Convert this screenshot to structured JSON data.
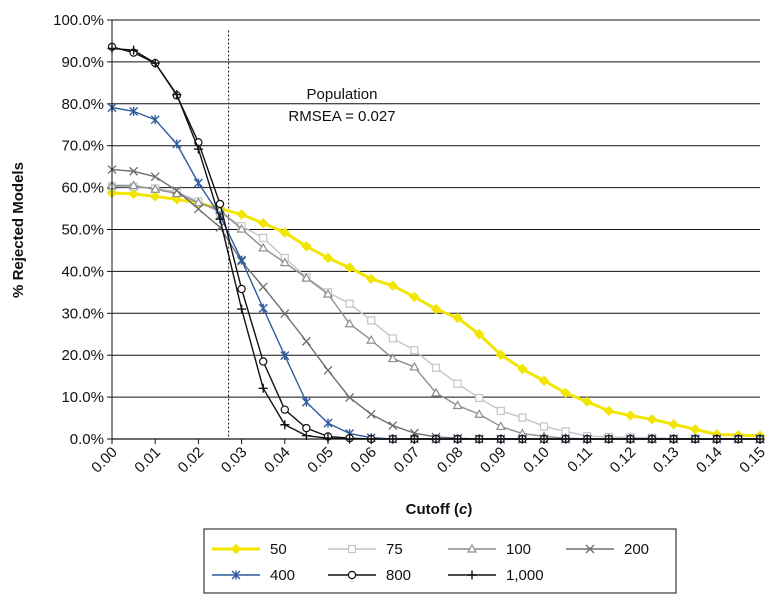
{
  "chart_data": {
    "type": "line",
    "title": "",
    "xlabel": "Cutoff (c)",
    "xlabel_parts": [
      "Cutoff (",
      "c",
      ")"
    ],
    "ylabel": "% Rejected Models",
    "xlim": [
      0.0,
      0.15
    ],
    "ylim": [
      0.0,
      100.0
    ],
    "grid": "horizontal",
    "legend_position": "bottom",
    "x": [
      0.0,
      0.005,
      0.01,
      0.015,
      0.02,
      0.025,
      0.03,
      0.035,
      0.04,
      0.045,
      0.05,
      0.055,
      0.06,
      0.065,
      0.07,
      0.075,
      0.08,
      0.085,
      0.09,
      0.095,
      0.1,
      0.105,
      0.11,
      0.115,
      0.12,
      0.125,
      0.13,
      0.135,
      0.14,
      0.145,
      0.15
    ],
    "x_ticks": [
      "0.00",
      "0.01",
      "0.02",
      "0.03",
      "0.04",
      "0.05",
      "0.06",
      "0.07",
      "0.08",
      "0.09",
      "0.10",
      "0.11",
      "0.12",
      "0.13",
      "0.14",
      "0.15"
    ],
    "y_ticks": [
      "0.0%",
      "10.0%",
      "20.0%",
      "30.0%",
      "40.0%",
      "50.0%",
      "60.0%",
      "70.0%",
      "80.0%",
      "90.0%",
      "100.0%"
    ],
    "reference_line": {
      "x": 0.027,
      "label_line1": "Population",
      "label_line2": "RMSEA = 0.027"
    },
    "series": [
      {
        "name": "50",
        "color": "#f2e600",
        "marker": "diamond",
        "width": 3,
        "values": [
          58.7,
          58.5,
          57.9,
          57.2,
          56.3,
          55.0,
          53.6,
          51.5,
          49.3,
          46.0,
          43.2,
          40.9,
          38.2,
          36.6,
          33.9,
          31.0,
          28.9,
          25.0,
          20.1,
          16.7,
          13.9,
          11.0,
          8.9,
          6.7,
          5.6,
          4.7,
          3.5,
          2.3,
          1.1,
          0.9,
          0.8
        ]
      },
      {
        "name": "75",
        "color": "#c4c4c4",
        "marker": "square",
        "width": 1.4,
        "values": [
          60.3,
          60.2,
          59.8,
          59.0,
          56.7,
          54.0,
          50.8,
          48.0,
          43.2,
          38.6,
          35.0,
          32.3,
          28.3,
          24.0,
          21.2,
          17.0,
          13.2,
          9.8,
          6.7,
          5.1,
          3.0,
          1.8,
          0.7,
          0.5,
          0.4,
          0.3,
          0.1,
          0.1,
          0.0,
          0.0,
          0.0
        ]
      },
      {
        "name": "100",
        "color": "#8e8e8e",
        "marker": "triangle",
        "width": 1.4,
        "values": [
          60.5,
          60.5,
          59.6,
          58.6,
          56.4,
          54.6,
          50.1,
          45.6,
          42.1,
          38.4,
          34.6,
          27.5,
          23.6,
          19.2,
          17.2,
          11.0,
          8.0,
          5.9,
          3.0,
          1.3,
          0.6,
          0.2,
          0.0,
          0.0,
          0.0,
          0.0,
          0.0,
          0.0,
          0.0,
          0.0,
          0.0
        ]
      },
      {
        "name": "200",
        "color": "#6e6e6e",
        "marker": "x",
        "width": 1.4,
        "values": [
          64.3,
          63.9,
          62.6,
          59.3,
          54.9,
          50.5,
          42.4,
          36.3,
          29.9,
          23.3,
          16.4,
          9.9,
          5.9,
          3.2,
          1.4,
          0.5,
          0.2,
          0.0,
          0.0,
          0.0,
          0.0,
          0.0,
          0.0,
          0.0,
          0.0,
          0.0,
          0.0,
          0.0,
          0.0,
          0.0,
          0.0
        ]
      },
      {
        "name": "400",
        "color": "#2f5c9e",
        "marker": "star",
        "width": 1.4,
        "values": [
          79.1,
          78.2,
          76.2,
          70.4,
          61.1,
          53.3,
          42.7,
          31.2,
          19.9,
          8.8,
          3.8,
          1.3,
          0.3,
          0.0,
          0.0,
          0.0,
          0.0,
          0.0,
          0.0,
          0.0,
          0.0,
          0.0,
          0.0,
          0.0,
          0.0,
          0.0,
          0.0,
          0.0,
          0.0,
          0.0,
          0.0
        ]
      },
      {
        "name": "800",
        "color": "#111111",
        "marker": "circle",
        "width": 1.4,
        "values": [
          93.6,
          92.2,
          89.7,
          82.0,
          70.8,
          56.1,
          35.8,
          18.5,
          7.0,
          2.6,
          0.6,
          0.2,
          0.0,
          0.0,
          0.0,
          0.0,
          0.0,
          0.0,
          0.0,
          0.0,
          0.0,
          0.0,
          0.0,
          0.0,
          0.0,
          0.0,
          0.0,
          0.0,
          0.0,
          0.0,
          0.0
        ]
      },
      {
        "name": "1,000",
        "color": "#111111",
        "marker": "plus",
        "width": 1.4,
        "values": [
          93.2,
          92.8,
          89.7,
          82.2,
          69.2,
          52.5,
          31.0,
          12.1,
          3.4,
          0.8,
          0.2,
          0.0,
          0.0,
          0.0,
          0.0,
          0.0,
          0.0,
          0.0,
          0.0,
          0.0,
          0.0,
          0.0,
          0.0,
          0.0,
          0.0,
          0.0,
          0.0,
          0.0,
          0.0,
          0.0,
          0.0
        ]
      }
    ]
  }
}
